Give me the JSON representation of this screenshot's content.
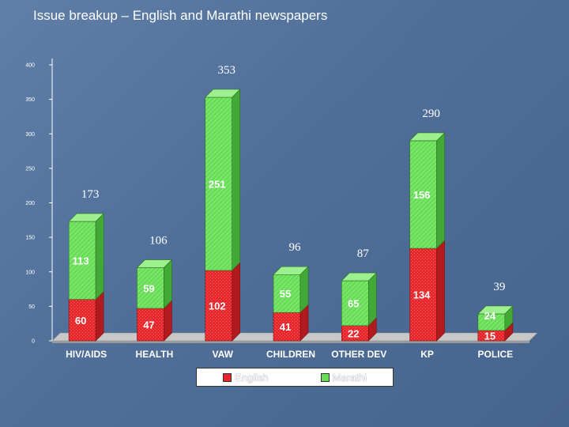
{
  "title": "Issue breakup – English and Marathi newspapers",
  "colors": {
    "english": "#e8262b",
    "marathi": "#66dd55",
    "background": "#4f6f99"
  },
  "chart_data": {
    "type": "bar",
    "stacked": true,
    "categories": [
      "HIV/AIDS",
      "HEALTH",
      "VAW",
      "CHILDREN",
      "OTHER DEV",
      "KP",
      "POLICE"
    ],
    "series": [
      {
        "name": "English",
        "values": [
          60,
          47,
          102,
          41,
          22,
          134,
          15
        ]
      },
      {
        "name": "Marathi",
        "values": [
          113,
          59,
          251,
          55,
          65,
          156,
          24
        ]
      }
    ],
    "totals": [
      173,
      106,
      353,
      96,
      87,
      290,
      39
    ],
    "ylim": [
      0,
      400
    ],
    "yticks": [
      0,
      50,
      100,
      150,
      200,
      250,
      300,
      350,
      400
    ],
    "ytick_labels": [
      "0",
      "50",
      "100",
      "150",
      "200",
      "250",
      "300",
      "350",
      "400"
    ],
    "xlabel": "",
    "ylabel": "",
    "legend_position": "bottom",
    "grid": false
  }
}
